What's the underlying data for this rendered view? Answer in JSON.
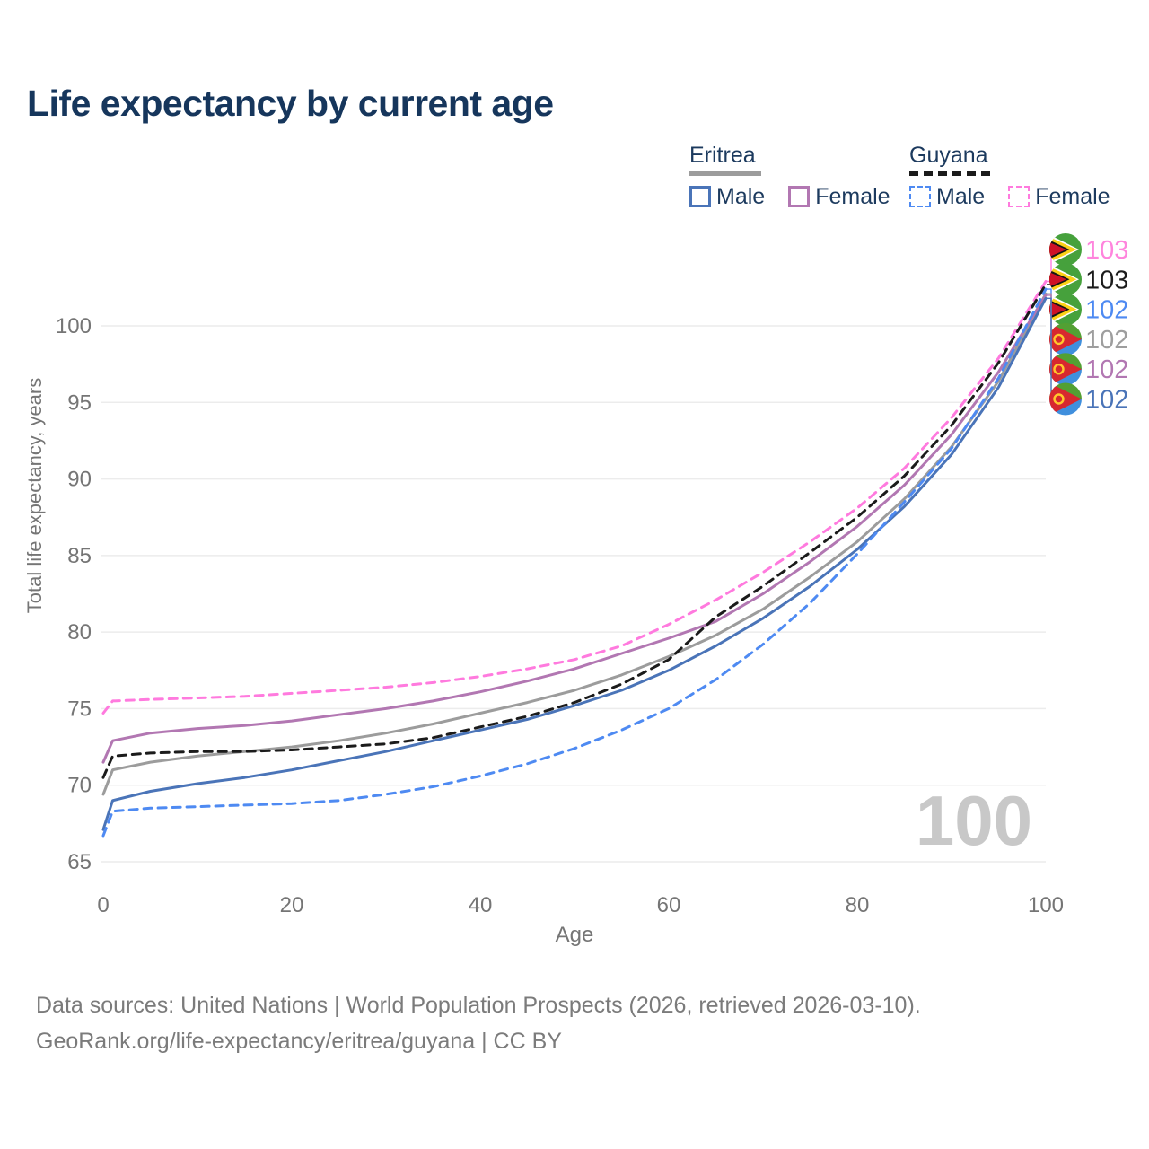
{
  "title": "Life expectancy by current age",
  "legend": {
    "groups": [
      {
        "country": "Eritrea",
        "line_style": "solid",
        "underline_color": "#9c9c9c",
        "items": [
          {
            "label": "Male",
            "color": "#4a74b8",
            "dashed": false
          },
          {
            "label": "Female",
            "color": "#b277b2",
            "dashed": false
          }
        ]
      },
      {
        "country": "Guyana",
        "line_style": "dashed",
        "underline_color": "#1b1b1b",
        "items": [
          {
            "label": "Male",
            "color": "#4e8af2",
            "dashed": true
          },
          {
            "label": "Female",
            "color": "#ff7ade",
            "dashed": true
          }
        ]
      }
    ]
  },
  "chart_data": {
    "type": "line",
    "title": "Life expectancy by current age",
    "xlabel": "Age",
    "ylabel": "Total life expectancy, years",
    "xlim": [
      0,
      100
    ],
    "ylim": [
      65,
      103
    ],
    "x_ticks": [
      0,
      20,
      40,
      60,
      80,
      100
    ],
    "y_ticks": [
      65,
      70,
      75,
      80,
      85,
      90,
      95,
      100
    ],
    "grid": "horizontal",
    "watermark": "100",
    "x": [
      0,
      1,
      5,
      10,
      15,
      20,
      25,
      30,
      35,
      40,
      45,
      50,
      55,
      60,
      65,
      70,
      75,
      80,
      85,
      90,
      95,
      100
    ],
    "series": [
      {
        "name": "Guyana Female",
        "country": "Guyana",
        "sex": "Female",
        "flag": "guyana",
        "color": "#ff7ade",
        "dashed": true,
        "end_label": "103",
        "end_label_color": "#ff85dd",
        "values": [
          74.7,
          75.5,
          75.6,
          75.7,
          75.8,
          76.0,
          76.2,
          76.4,
          76.7,
          77.1,
          77.6,
          78.2,
          79.1,
          80.5,
          82.1,
          83.9,
          85.9,
          88.1,
          90.7,
          94.0,
          97.9,
          102.9
        ]
      },
      {
        "name": "Guyana (both sexes)",
        "country": "Guyana",
        "sex": "Both",
        "flag": "guyana",
        "color": "#1b1b1b",
        "dashed": true,
        "end_label": "103",
        "end_label_color": "#1c1c1c",
        "values": [
          70.5,
          71.9,
          72.1,
          72.2,
          72.2,
          72.3,
          72.5,
          72.7,
          73.1,
          73.8,
          74.5,
          75.4,
          76.6,
          78.2,
          81.0,
          83.0,
          85.2,
          87.5,
          90.2,
          93.5,
          97.6,
          102.7
        ]
      },
      {
        "name": "Guyana Male",
        "country": "Guyana",
        "sex": "Male",
        "flag": "guyana",
        "color": "#4e8af2",
        "dashed": true,
        "end_label": "102",
        "end_label_color": "#4e8af2",
        "values": [
          66.7,
          68.3,
          68.5,
          68.6,
          68.7,
          68.8,
          69.0,
          69.4,
          69.9,
          70.6,
          71.4,
          72.4,
          73.6,
          75.0,
          76.9,
          79.2,
          81.9,
          85.1,
          88.5,
          92.0,
          96.6,
          102.4
        ]
      },
      {
        "name": "Eritrea (both sexes)",
        "country": "Eritrea",
        "sex": "Both",
        "flag": "eritrea",
        "color": "#9c9c9c",
        "dashed": false,
        "end_label": "102",
        "end_label_color": "#9e9e9e",
        "values": [
          69.4,
          71.0,
          71.5,
          71.9,
          72.2,
          72.5,
          72.9,
          73.4,
          74.0,
          74.7,
          75.4,
          76.2,
          77.2,
          78.4,
          79.8,
          81.5,
          83.6,
          85.9,
          88.7,
          92.1,
          96.4,
          102.1
        ]
      },
      {
        "name": "Eritrea Female",
        "country": "Eritrea",
        "sex": "Female",
        "flag": "eritrea",
        "color": "#b277b2",
        "dashed": false,
        "end_label": "102",
        "end_label_color": "#b277b2",
        "values": [
          71.5,
          72.9,
          73.4,
          73.7,
          73.9,
          74.2,
          74.6,
          75.0,
          75.5,
          76.1,
          76.8,
          77.6,
          78.6,
          79.6,
          80.7,
          82.5,
          84.6,
          86.9,
          89.6,
          92.9,
          97.0,
          102.0
        ]
      },
      {
        "name": "Eritrea Male",
        "country": "Eritrea",
        "sex": "Male",
        "flag": "eritrea",
        "color": "#4a74b8",
        "dashed": false,
        "end_label": "102",
        "end_label_color": "#4a74b8",
        "values": [
          67.1,
          69.0,
          69.6,
          70.1,
          70.5,
          71.0,
          71.6,
          72.2,
          72.9,
          73.6,
          74.3,
          75.2,
          76.2,
          77.5,
          79.1,
          80.9,
          83.0,
          85.4,
          88.2,
          91.6,
          96.0,
          101.8
        ]
      }
    ]
  },
  "footer": {
    "line1": "Data sources: United Nations | World Population Prospects (2026, retrieved 2026-03-10).",
    "line2": "GeoRank.org/life-expectancy/eritrea/guyana | CC BY"
  }
}
